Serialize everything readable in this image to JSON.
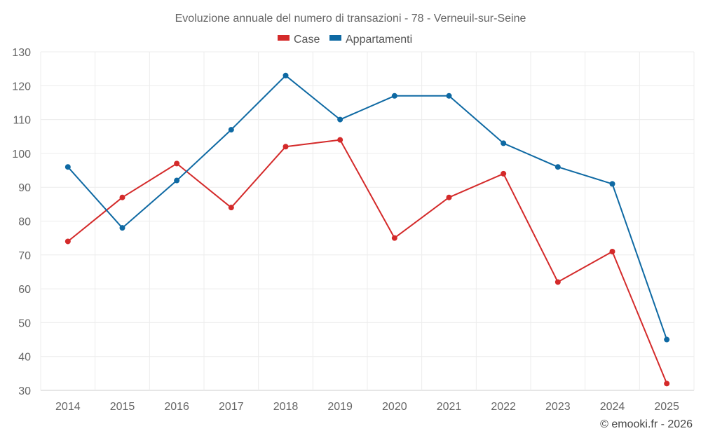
{
  "chart_data": {
    "type": "line",
    "title": "Evoluzione annuale del numero di transazioni - 78 - Verneuil-sur-Seine",
    "categories": [
      "2014",
      "2015",
      "2016",
      "2017",
      "2018",
      "2019",
      "2020",
      "2021",
      "2022",
      "2023",
      "2024",
      "2025"
    ],
    "series": [
      {
        "name": "Case",
        "color": "#d42a2a",
        "values": [
          74,
          87,
          97,
          84,
          102,
          104,
          75,
          87,
          94,
          62,
          71,
          32
        ]
      },
      {
        "name": "Appartamenti",
        "color": "#0e69a3",
        "values": [
          96,
          78,
          92,
          107,
          123,
          110,
          117,
          117,
          103,
          96,
          91,
          45
        ]
      }
    ],
    "ylim": [
      30,
      130
    ],
    "yticks": [
      30,
      40,
      50,
      60,
      70,
      80,
      90,
      100,
      110,
      120,
      130
    ],
    "grid": true,
    "legend_position": "top-center",
    "xlabel": "",
    "ylabel": ""
  },
  "credit": "© emooki.fr - 2026"
}
